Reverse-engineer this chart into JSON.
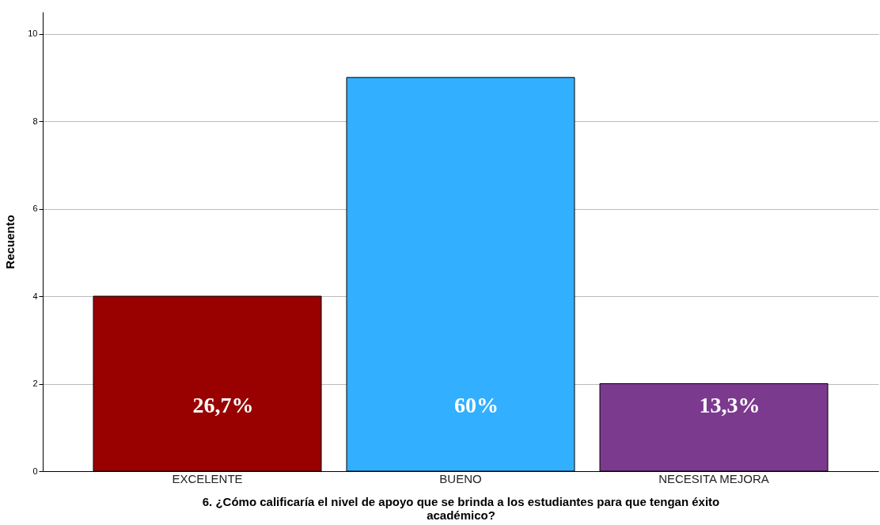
{
  "chart_data": {
    "type": "bar",
    "xlabel": "6. ¿Cómo calificaría el nivel de apoyo que se brinda a los estudiantes para que tengan éxito académico?",
    "ylabel": "Recuento",
    "categories": [
      "EXCELENTE",
      "BUENO",
      "NECESITA MEJORA"
    ],
    "values": [
      4,
      9,
      2
    ],
    "colors": [
      "#990000",
      "#33afff",
      "#7b3a8e"
    ],
    "annotations": [
      "26,7%",
      "60%",
      "13,3%"
    ],
    "ylim": [
      0,
      10.5
    ],
    "yticks": [
      0,
      2,
      4,
      6,
      8,
      10
    ],
    "grid": "y"
  }
}
